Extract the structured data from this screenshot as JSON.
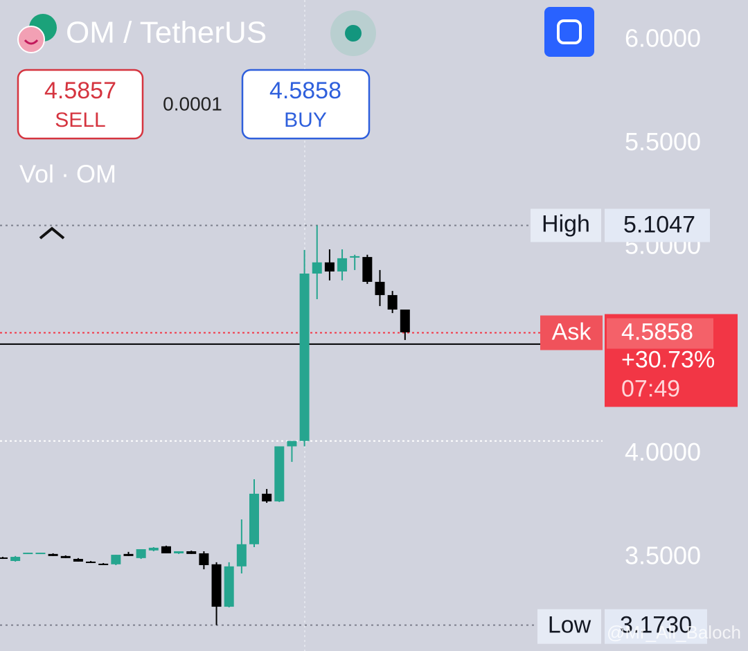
{
  "header": {
    "symbol": "OM / TetherUS",
    "sell": {
      "price": "4.5857",
      "label": "SELL"
    },
    "spread": "0.0001",
    "buy": {
      "price": "4.5858",
      "label": "BUY"
    },
    "indicator": "Vol · OM",
    "watermark": "@Mr_Ali_Baloch"
  },
  "chart_data": {
    "type": "candlestick",
    "up_color": "#26a58f",
    "down_color": "#000000",
    "open": [
      3.5,
      3.483,
      3.52,
      3.52,
      3.517,
      3.507,
      3.493,
      3.48,
      3.47,
      3.467,
      3.517,
      3.497,
      3.534,
      3.554,
      3.52,
      3.53,
      3.52,
      3.467,
      3.262,
      3.457,
      3.564,
      3.808,
      3.771,
      4.037,
      4.063,
      4.872,
      4.926,
      4.882,
      4.949,
      4.952,
      4.832,
      4.768,
      4.698
    ],
    "high": [
      3.503,
      3.507,
      3.523,
      3.523,
      3.52,
      3.51,
      3.497,
      3.483,
      3.473,
      3.513,
      3.527,
      3.54,
      3.55,
      3.557,
      3.53,
      3.533,
      3.53,
      3.477,
      3.477,
      3.684,
      3.878,
      3.831,
      4.037,
      4.063,
      4.986,
      5.1047,
      4.989,
      4.989,
      4.963,
      4.963,
      4.889,
      4.788,
      4.698
    ],
    "low": [
      3.493,
      3.48,
      3.517,
      3.517,
      3.507,
      3.497,
      3.48,
      3.473,
      3.463,
      3.463,
      3.507,
      3.493,
      3.53,
      3.52,
      3.517,
      3.517,
      3.443,
      3.173,
      3.259,
      3.423,
      3.55,
      3.764,
      3.768,
      3.962,
      4.037,
      4.748,
      4.839,
      4.839,
      4.889,
      4.822,
      4.715,
      4.681,
      4.551
    ],
    "close": [
      3.497,
      3.503,
      3.523,
      3.523,
      3.507,
      3.497,
      3.48,
      3.473,
      3.463,
      3.513,
      3.507,
      3.54,
      3.547,
      3.52,
      3.53,
      3.517,
      3.463,
      3.262,
      3.457,
      3.564,
      3.808,
      3.771,
      4.037,
      4.063,
      4.872,
      4.926,
      4.882,
      4.946,
      4.956,
      4.832,
      4.768,
      4.698,
      4.588
    ],
    "ylim": [
      3.048,
      6.194
    ],
    "yticks": [
      {
        "value": 6,
        "label": "6.0000"
      },
      {
        "value": 5.5,
        "label": "5.5000"
      },
      {
        "value": 5,
        "label": "5.0000"
      },
      {
        "value": 4,
        "label": "4.0000"
      },
      {
        "value": 3.5,
        "label": "3.5000"
      }
    ],
    "price_line": 4.531,
    "level_line": 4.063,
    "high_marker": {
      "name": "High",
      "value": 5.1047
    },
    "low_marker": {
      "name": "Low",
      "value": 3.173,
      "value_label": "3.1730"
    },
    "ask_marker": {
      "name": "Ask",
      "value": 4.5858,
      "change": "+30.73%",
      "countdown": "07:49",
      "color": "#f23645"
    }
  }
}
